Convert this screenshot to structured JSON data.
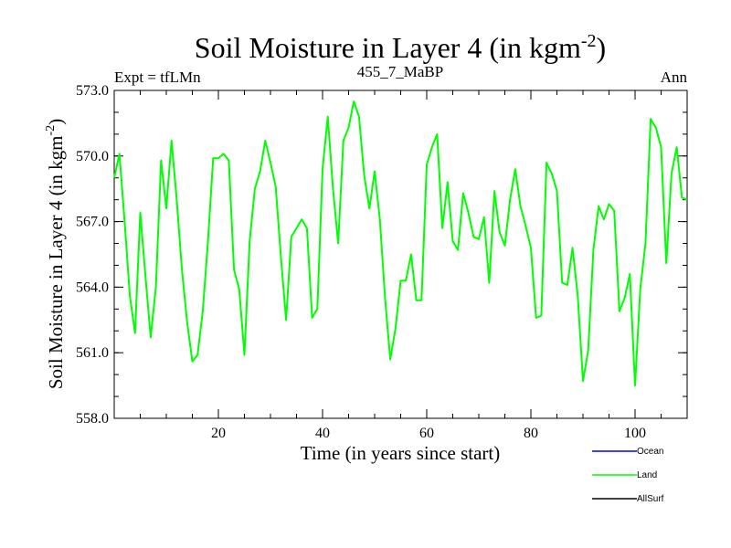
{
  "chart_data": {
    "type": "line",
    "title": "Soil Moisture in Layer 4 (in kgm",
    "title_sup": "-2",
    "title_close": ")",
    "subtitle_left": "Expt = tfLMn",
    "subtitle_center": "455_7_MaBP",
    "subtitle_right": "Ann",
    "xlabel": "Time (in years since start)",
    "ylabel": "Soil Moisture in Layer 4 (in kgm",
    "ylabel_sup": "-2",
    "ylabel_close": ")",
    "xlim": [
      0,
      110
    ],
    "ylim": [
      558.0,
      573.0
    ],
    "xticks": [
      20,
      40,
      60,
      80,
      100
    ],
    "xtick_labels": [
      "20",
      "40",
      "60",
      "80",
      "100"
    ],
    "yticks": [
      558.0,
      561.0,
      564.0,
      567.0,
      570.0,
      573.0
    ],
    "ytick_labels": [
      "558.0",
      "561.0",
      "564.0",
      "567.0",
      "570.0",
      "573.0"
    ],
    "series": [
      {
        "name": "Ocean",
        "color": "#0000ff",
        "x": [],
        "values": []
      },
      {
        "name": "Land",
        "color": "#00ff00",
        "x": [
          0,
          1,
          2,
          3,
          4,
          5,
          6,
          7,
          8,
          9,
          10,
          11,
          12,
          13,
          14,
          15,
          16,
          17,
          18,
          19,
          20,
          21,
          22,
          23,
          24,
          25,
          26,
          27,
          28,
          29,
          30,
          31,
          32,
          33,
          34,
          35,
          36,
          37,
          38,
          39,
          40,
          41,
          42,
          43,
          44,
          45,
          46,
          47,
          48,
          49,
          50,
          51,
          52,
          53,
          54,
          55,
          56,
          57,
          58,
          59,
          60,
          61,
          62,
          63,
          64,
          65,
          66,
          67,
          68,
          69,
          70,
          71,
          72,
          73,
          74,
          75,
          76,
          77,
          78,
          79,
          80,
          81,
          82,
          83,
          84,
          85,
          86,
          87,
          88,
          89,
          90,
          91,
          92,
          93,
          94,
          95,
          96,
          97,
          98,
          99,
          100,
          101,
          102,
          103,
          104,
          105,
          106,
          107,
          108,
          109,
          110
        ],
        "values": [
          569.0,
          570.1,
          567.0,
          563.6,
          561.9,
          567.4,
          564.5,
          561.7,
          564.0,
          569.8,
          567.6,
          570.7,
          568.0,
          564.8,
          562.4,
          560.6,
          560.9,
          562.9,
          566.1,
          569.9,
          569.9,
          570.1,
          569.8,
          564.8,
          563.9,
          560.9,
          566.1,
          568.5,
          569.3,
          570.7,
          569.7,
          568.6,
          565.4,
          562.5,
          566.3,
          566.7,
          567.1,
          566.7,
          562.6,
          563.0,
          569.4,
          571.8,
          568.5,
          566.0,
          570.7,
          571.3,
          572.5,
          571.8,
          569.1,
          567.6,
          569.3,
          567.1,
          563.5,
          560.7,
          562.1,
          564.3,
          564.3,
          565.5,
          563.4,
          563.4,
          569.6,
          570.4,
          571.0,
          566.7,
          568.8,
          566.1,
          565.7,
          568.3,
          567.4,
          566.3,
          566.2,
          567.2,
          564.2,
          568.4,
          566.5,
          565.9,
          568.0,
          569.4,
          567.7,
          566.8,
          565.8,
          562.6,
          562.7,
          569.7,
          569.2,
          568.4,
          564.2,
          564.1,
          565.8,
          563.6,
          559.7,
          561.1,
          565.7,
          567.7,
          567.1,
          567.8,
          567.5,
          562.9,
          563.5,
          564.6,
          559.5,
          563.9,
          566.0,
          571.7,
          571.3,
          570.4,
          565.1,
          569.2,
          570.4,
          568.1,
          568.0
        ]
      },
      {
        "name": "AllSurf",
        "color": "#000000",
        "x": [],
        "values": []
      }
    ],
    "legend_position": "bottom-right",
    "grid": false
  }
}
